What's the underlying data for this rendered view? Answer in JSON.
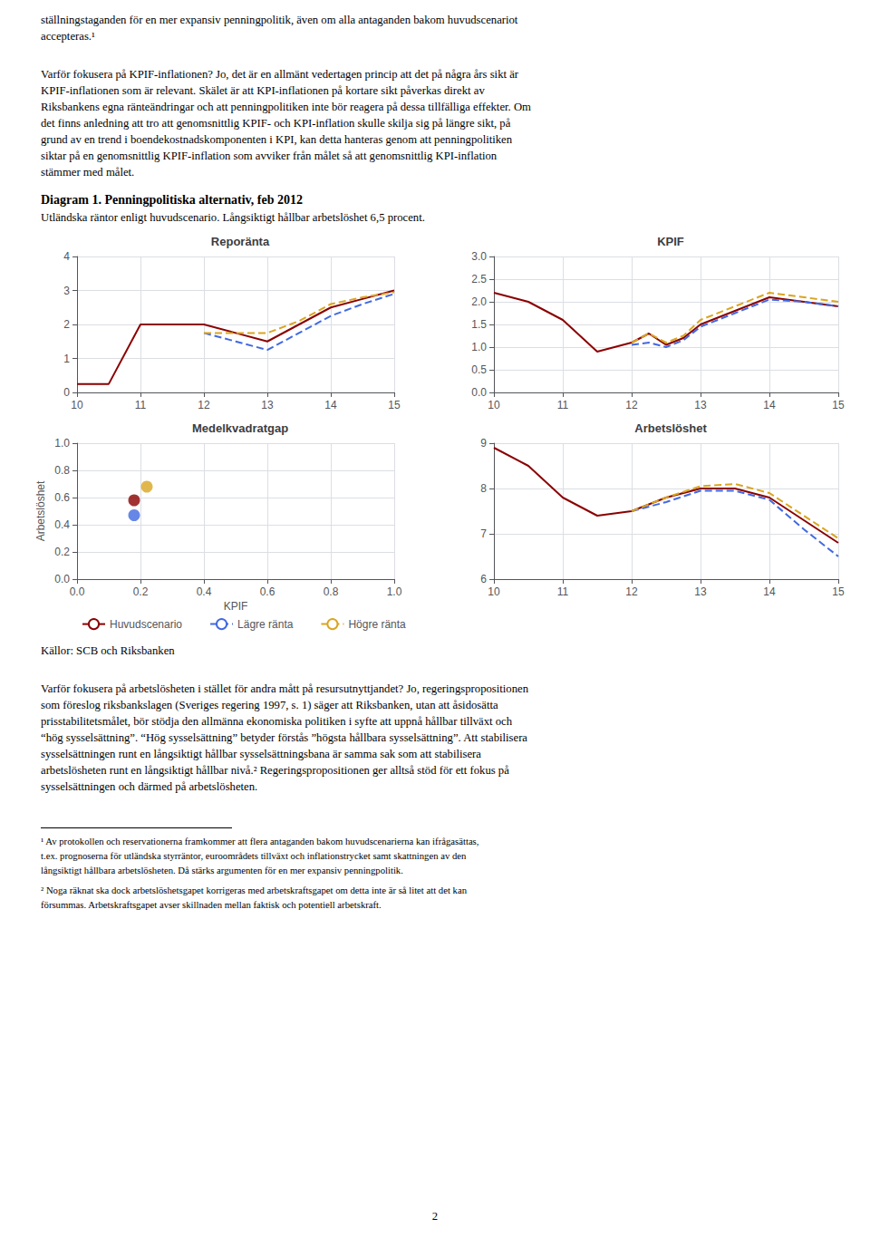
{
  "title": "Diagram 1. Penningpolitiska alternativ, feb 2012",
  "subtitle": "Utländska räntor enligt huvudscenario. Långsiktigt hållbar arbetslöshet 6,5 procent.",
  "annotations": {
    "top": [
      "ställningstaganden för en mer expansiv penningpolitik, även om alla antaganden bakom huvudscenariot",
      "accepteras.¹"
    ],
    "paragraph1": [
      "Varför fokusera på KPIF-inflationen? Jo, det är en allmänt vedertagen princip att det på några års sikt är",
      "KPIF-inflationen som är relevant. Skälet är att KPI-inflationen på kortare sikt påverkas direkt av",
      "Riksbankens egna ränteändringar och att penningpolitiken inte bör reagera på dessa tillfälliga effekter. Om",
      "det finns anledning att tro att genomsnittlig KPIF- och KPI-inflation skulle skilja sig på längre sikt, på",
      "grund av en trend i boendekostnadskomponenten i KPI, kan detta hanteras genom att penningpolitiken",
      "siktar på en genomsnittlig KPIF-inflation som avviker från målet så att genomsnittlig KPI-inflation",
      "stämmer med målet."
    ],
    "sources": "Källor: SCB och Riksbanken",
    "paragraph2": [
      "Varför fokusera på arbetslösheten i stället för andra mått på resursutnyttjandet? Jo, regeringspropositionen",
      "som föreslog riksbankslagen (Sveriges regering 1997, s. 1) säger att Riksbanken, utan att åsidosätta",
      "prisstabilitetsmålet, bör stödja den allmänna ekonomiska politiken i syfte att uppnå hållbar tillväxt och",
      "“hög sysselsättning”. “Hög sysselsättning” betyder förstås ”högsta hållbara sysselsättning”. Att stabilisera",
      "sysselsättningen runt en långsiktigt hållbar sysselsättningsbana är samma sak som att stabilisera",
      "arbetslösheten runt en långsiktigt hållbar nivå.² Regeringspropositionen ger alltså stöd för ett fokus på",
      "sysselsättningen och därmed på arbetslösheten."
    ],
    "footnotes": [
      [
        "¹ Av protokollen och reservationerna framkommer att flera antaganden bakom huvudscenarierna kan ifrågasättas,",
        "t.ex. prognoserna för utländska styrräntor, euroområdets tillväxt och inflationstrycket samt skattningen av den",
        "långsiktigt hållbara arbetslösheten. Då stärks argumenten för en mer expansiv penningpolitik."
      ],
      [
        "² Noga räknat ska dock arbetslöshetsgapet korrigeras med arbetskraftsgapet om detta inte är så litet att det kan",
        "försummas. Arbetskraftsgapet avser skillnaden mellan faktisk och potentiell arbetskraft."
      ]
    ],
    "page_number": "2"
  },
  "legend": "lower left",
  "chart_data": [
    {
      "type": "line",
      "title": "Reporänta",
      "x": [
        10,
        10.5,
        11,
        11.5,
        12,
        12.5,
        13,
        13.5,
        14,
        14.5,
        15
      ],
      "series": [
        {
          "name": "Huvudscenario",
          "color": "#8B0000",
          "line_style": "solid",
          "values": [
            0.25,
            0.25,
            2.0,
            2.0,
            2.0,
            1.75,
            1.5,
            2.0,
            2.5,
            2.75,
            3.0
          ]
        },
        {
          "name": "Lägre ränta",
          "color": "#4169E1",
          "line_style": "dashed",
          "values": [
            null,
            null,
            null,
            null,
            1.75,
            1.5,
            1.25,
            1.75,
            2.25,
            2.6,
            2.9
          ]
        },
        {
          "name": "Högre ränta",
          "color": "#DAA520",
          "line_style": "dashed",
          "values": [
            null,
            null,
            null,
            null,
            1.75,
            1.75,
            1.75,
            2.1,
            2.6,
            2.8,
            2.95
          ]
        }
      ],
      "xlim": [
        10,
        15
      ],
      "xticks": [
        10,
        11,
        12,
        13,
        14,
        15
      ],
      "ylim": [
        0,
        4
      ],
      "yticks": [
        0,
        1,
        2,
        3,
        4
      ],
      "grid": true
    },
    {
      "type": "line",
      "title": "KPIF",
      "x": [
        10,
        10.5,
        11,
        11.5,
        12,
        12.25,
        12.5,
        12.75,
        13,
        13.5,
        14,
        14.5,
        15
      ],
      "series": [
        {
          "name": "Huvudscenario",
          "color": "#8B0000",
          "line_style": "solid",
          "values": [
            2.2,
            2.0,
            1.6,
            0.9,
            1.1,
            1.3,
            1.05,
            1.2,
            1.5,
            1.8,
            2.1,
            2.0,
            1.9
          ]
        },
        {
          "name": "Lägre ränta",
          "color": "#4169E1",
          "line_style": "dashed",
          "values": [
            null,
            null,
            null,
            null,
            1.05,
            1.1,
            1.0,
            1.15,
            1.45,
            1.75,
            2.05,
            2.0,
            1.9
          ]
        },
        {
          "name": "Högre ränta",
          "color": "#DAA520",
          "line_style": "dashed",
          "values": [
            null,
            null,
            null,
            null,
            1.1,
            1.3,
            1.1,
            1.25,
            1.6,
            1.9,
            2.2,
            2.1,
            2.0
          ]
        }
      ],
      "xlim": [
        10,
        15
      ],
      "xticks": [
        10,
        11,
        12,
        13,
        14,
        15
      ],
      "ylim": [
        0,
        3
      ],
      "yticks": [
        {
          "value": 0,
          "label": "0.0"
        },
        0.5,
        {
          "value": 1,
          "label": "1.0"
        },
        1.5,
        {
          "value": 2,
          "label": "2.0"
        },
        2.5,
        {
          "value": 3,
          "label": "3.0"
        }
      ],
      "grid": true
    },
    {
      "type": "scatter",
      "title": "Medelkvadratgap",
      "xlabel": "KPIF",
      "ylabel": "Arbetslöshet",
      "series": [
        {
          "name": "Huvudscenario",
          "color": "#8B0000",
          "x": [
            0.18
          ],
          "values": [
            0.58
          ]
        },
        {
          "name": "Lägre ränta",
          "color": "#4169E1",
          "x": [
            0.18
          ],
          "values": [
            0.47
          ]
        },
        {
          "name": "Högre ränta",
          "color": "#DAA520",
          "x": [
            0.22
          ],
          "values": [
            0.68
          ]
        }
      ],
      "xlim": [
        0.0,
        1.0
      ],
      "xticks": [
        {
          "value": 0,
          "label": "0.0"
        },
        0.2,
        0.4,
        0.6,
        0.8,
        {
          "value": 1,
          "label": "1.0"
        }
      ],
      "ylim": [
        0.0,
        1.0
      ],
      "yticks": [
        {
          "value": 0,
          "label": "0.0"
        },
        0.2,
        0.4,
        0.6,
        0.8,
        {
          "value": 1,
          "label": "1.0"
        }
      ],
      "grid": true
    },
    {
      "type": "line",
      "title": "Arbetslöshet",
      "x": [
        10,
        10.5,
        11,
        11.5,
        12,
        12.5,
        13,
        13.5,
        14,
        14.5,
        15
      ],
      "series": [
        {
          "name": "Huvudscenario",
          "color": "#8B0000",
          "line_style": "solid",
          "values": [
            8.9,
            8.5,
            7.8,
            7.4,
            7.5,
            7.8,
            8.0,
            8.0,
            7.8,
            7.3,
            6.8
          ]
        },
        {
          "name": "Lägre ränta",
          "color": "#4169E1",
          "line_style": "dashed",
          "values": [
            null,
            null,
            null,
            null,
            7.5,
            7.7,
            7.95,
            7.95,
            7.75,
            7.1,
            6.5
          ]
        },
        {
          "name": "Högre ränta",
          "color": "#DAA520",
          "line_style": "dashed",
          "values": [
            null,
            null,
            null,
            null,
            7.5,
            7.8,
            8.05,
            8.1,
            7.9,
            7.4,
            6.9
          ]
        }
      ],
      "xlim": [
        10,
        15
      ],
      "xticks": [
        10,
        11,
        12,
        13,
        14,
        15
      ],
      "ylim": [
        6,
        9
      ],
      "yticks": [
        6,
        7,
        8,
        9
      ],
      "grid": true
    }
  ]
}
